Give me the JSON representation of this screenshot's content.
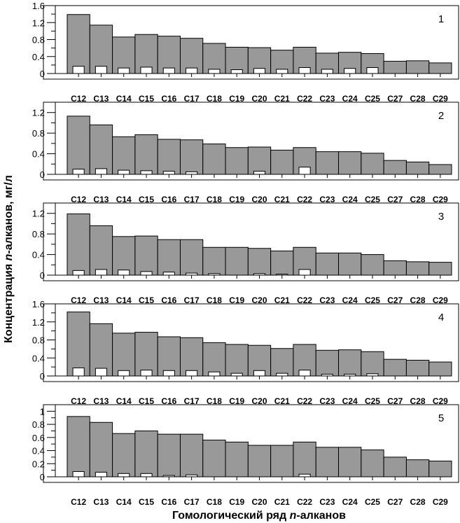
{
  "figure": {
    "ylabel_main": "Концентрация ",
    "ylabel_italic": "n",
    "ylabel_tail": "-алканов, мг/л",
    "xlabel_main": "Гомологический ряд ",
    "xlabel_italic": "n",
    "xlabel_tail": "-алканов"
  },
  "colors": {
    "bar_main": "#999999",
    "bar_secondary": "#ffffff",
    "stroke": "#000000"
  },
  "chart_data": [
    {
      "type": "bar",
      "panel_label": "1",
      "categories": [
        "C12",
        "C13",
        "C14",
        "C15",
        "C16",
        "C17",
        "C18",
        "C19",
        "C20",
        "C21",
        "C22",
        "C23",
        "C24",
        "C25",
        "C27",
        "C28",
        "C29"
      ],
      "ylim": [
        0,
        1.6
      ],
      "yticks": [
        0,
        0.4,
        0.8,
        1.2,
        1.6
      ],
      "ytick_labels": [
        "0",
        "0.4",
        "0.8",
        "1.2",
        "1.6"
      ],
      "series": [
        {
          "values": [
            1.39,
            1.14,
            0.86,
            0.92,
            0.88,
            0.83,
            0.71,
            0.62,
            0.61,
            0.55,
            0.62,
            0.48,
            0.5,
            0.47,
            0.29,
            0.3,
            0.25
          ]
        },
        {
          "values": [
            0.17,
            0.17,
            0.13,
            0.15,
            0.13,
            0.13,
            0.1,
            0.09,
            0.12,
            0.1,
            0.14,
            0.1,
            0.12,
            0.14,
            0,
            0,
            0
          ]
        }
      ]
    },
    {
      "type": "bar",
      "panel_label": "2",
      "categories": [
        "C12",
        "C13",
        "C14",
        "C15",
        "C16",
        "C17",
        "C18",
        "C19",
        "C20",
        "C21",
        "C22",
        "C23",
        "C24",
        "C25",
        "C27",
        "C28",
        "C29"
      ],
      "ylim": [
        0,
        1.4
      ],
      "yticks": [
        0,
        0.4,
        0.8,
        1.2
      ],
      "ytick_labels": [
        "0",
        "0.4",
        "0.8",
        "1.2"
      ],
      "series": [
        {
          "values": [
            1.13,
            0.96,
            0.73,
            0.77,
            0.68,
            0.67,
            0.59,
            0.52,
            0.53,
            0.47,
            0.52,
            0.44,
            0.44,
            0.41,
            0.27,
            0.24,
            0.19
          ]
        },
        {
          "values": [
            0.1,
            0.11,
            0.08,
            0.07,
            0.06,
            0.05,
            0,
            0,
            0.06,
            0,
            0.14,
            0,
            0,
            0,
            0,
            0,
            0
          ]
        }
      ]
    },
    {
      "type": "bar",
      "panel_label": "3",
      "categories": [
        "C12",
        "C13",
        "C14",
        "C15",
        "C16",
        "C17",
        "C18",
        "C19",
        "C20",
        "C21",
        "C22",
        "C23",
        "C24",
        "C25",
        "C27",
        "C28",
        "C29"
      ],
      "ylim": [
        0,
        1.4
      ],
      "yticks": [
        0,
        0.4,
        0.8,
        1.2
      ],
      "ytick_labels": [
        "0",
        "0.4",
        "0.8",
        "1.2"
      ],
      "series": [
        {
          "values": [
            1.19,
            0.96,
            0.75,
            0.76,
            0.69,
            0.69,
            0.54,
            0.54,
            0.52,
            0.47,
            0.54,
            0.43,
            0.43,
            0.4,
            0.28,
            0.26,
            0.25
          ]
        },
        {
          "values": [
            0.09,
            0.11,
            0.1,
            0.07,
            0.06,
            0.04,
            0.03,
            0,
            0.03,
            0.02,
            0.11,
            0,
            0,
            0,
            0,
            0,
            0
          ]
        }
      ]
    },
    {
      "type": "bar",
      "panel_label": "4",
      "categories": [
        "C12",
        "C13",
        "C14",
        "C15",
        "C16",
        "C17",
        "C18",
        "C19",
        "C20",
        "C21",
        "C22",
        "C23",
        "C24",
        "C25",
        "C27",
        "C28",
        "C29"
      ],
      "ylim": [
        0,
        1.6
      ],
      "yticks": [
        0,
        0.4,
        0.8,
        1.2,
        1.6
      ],
      "ytick_labels": [
        "0",
        "0.4",
        "0.8",
        "1.2",
        "1.6"
      ],
      "series": [
        {
          "values": [
            1.42,
            1.16,
            0.95,
            0.97,
            0.87,
            0.85,
            0.74,
            0.7,
            0.68,
            0.61,
            0.7,
            0.57,
            0.58,
            0.54,
            0.37,
            0.35,
            0.31
          ]
        },
        {
          "values": [
            0.18,
            0.17,
            0.12,
            0.13,
            0.12,
            0.12,
            0.09,
            0.06,
            0.12,
            0.06,
            0.13,
            0.04,
            0.04,
            0.05,
            0,
            0,
            0
          ]
        }
      ]
    },
    {
      "type": "bar",
      "panel_label": "5",
      "categories": [
        "C12",
        "C13",
        "C14",
        "C15",
        "C16",
        "C17",
        "C18",
        "C19",
        "C20",
        "C21",
        "C22",
        "C23",
        "C24",
        "C25",
        "C27",
        "C28",
        "C29"
      ],
      "ylim": [
        0,
        1.1
      ],
      "yticks": [
        0,
        0.2,
        0.4,
        0.6,
        0.8,
        1
      ],
      "ytick_labels": [
        "0",
        "0.2",
        "0.4",
        "0.6",
        "0.8",
        "1"
      ],
      "series": [
        {
          "values": [
            0.92,
            0.83,
            0.66,
            0.7,
            0.65,
            0.65,
            0.56,
            0.53,
            0.48,
            0.48,
            0.53,
            0.45,
            0.45,
            0.41,
            0.3,
            0.26,
            0.24
          ]
        },
        {
          "values": [
            0.08,
            0.07,
            0.05,
            0.05,
            0.02,
            0.03,
            0,
            0,
            0,
            0,
            0.04,
            0,
            0,
            0,
            0,
            0,
            0
          ]
        }
      ]
    }
  ]
}
